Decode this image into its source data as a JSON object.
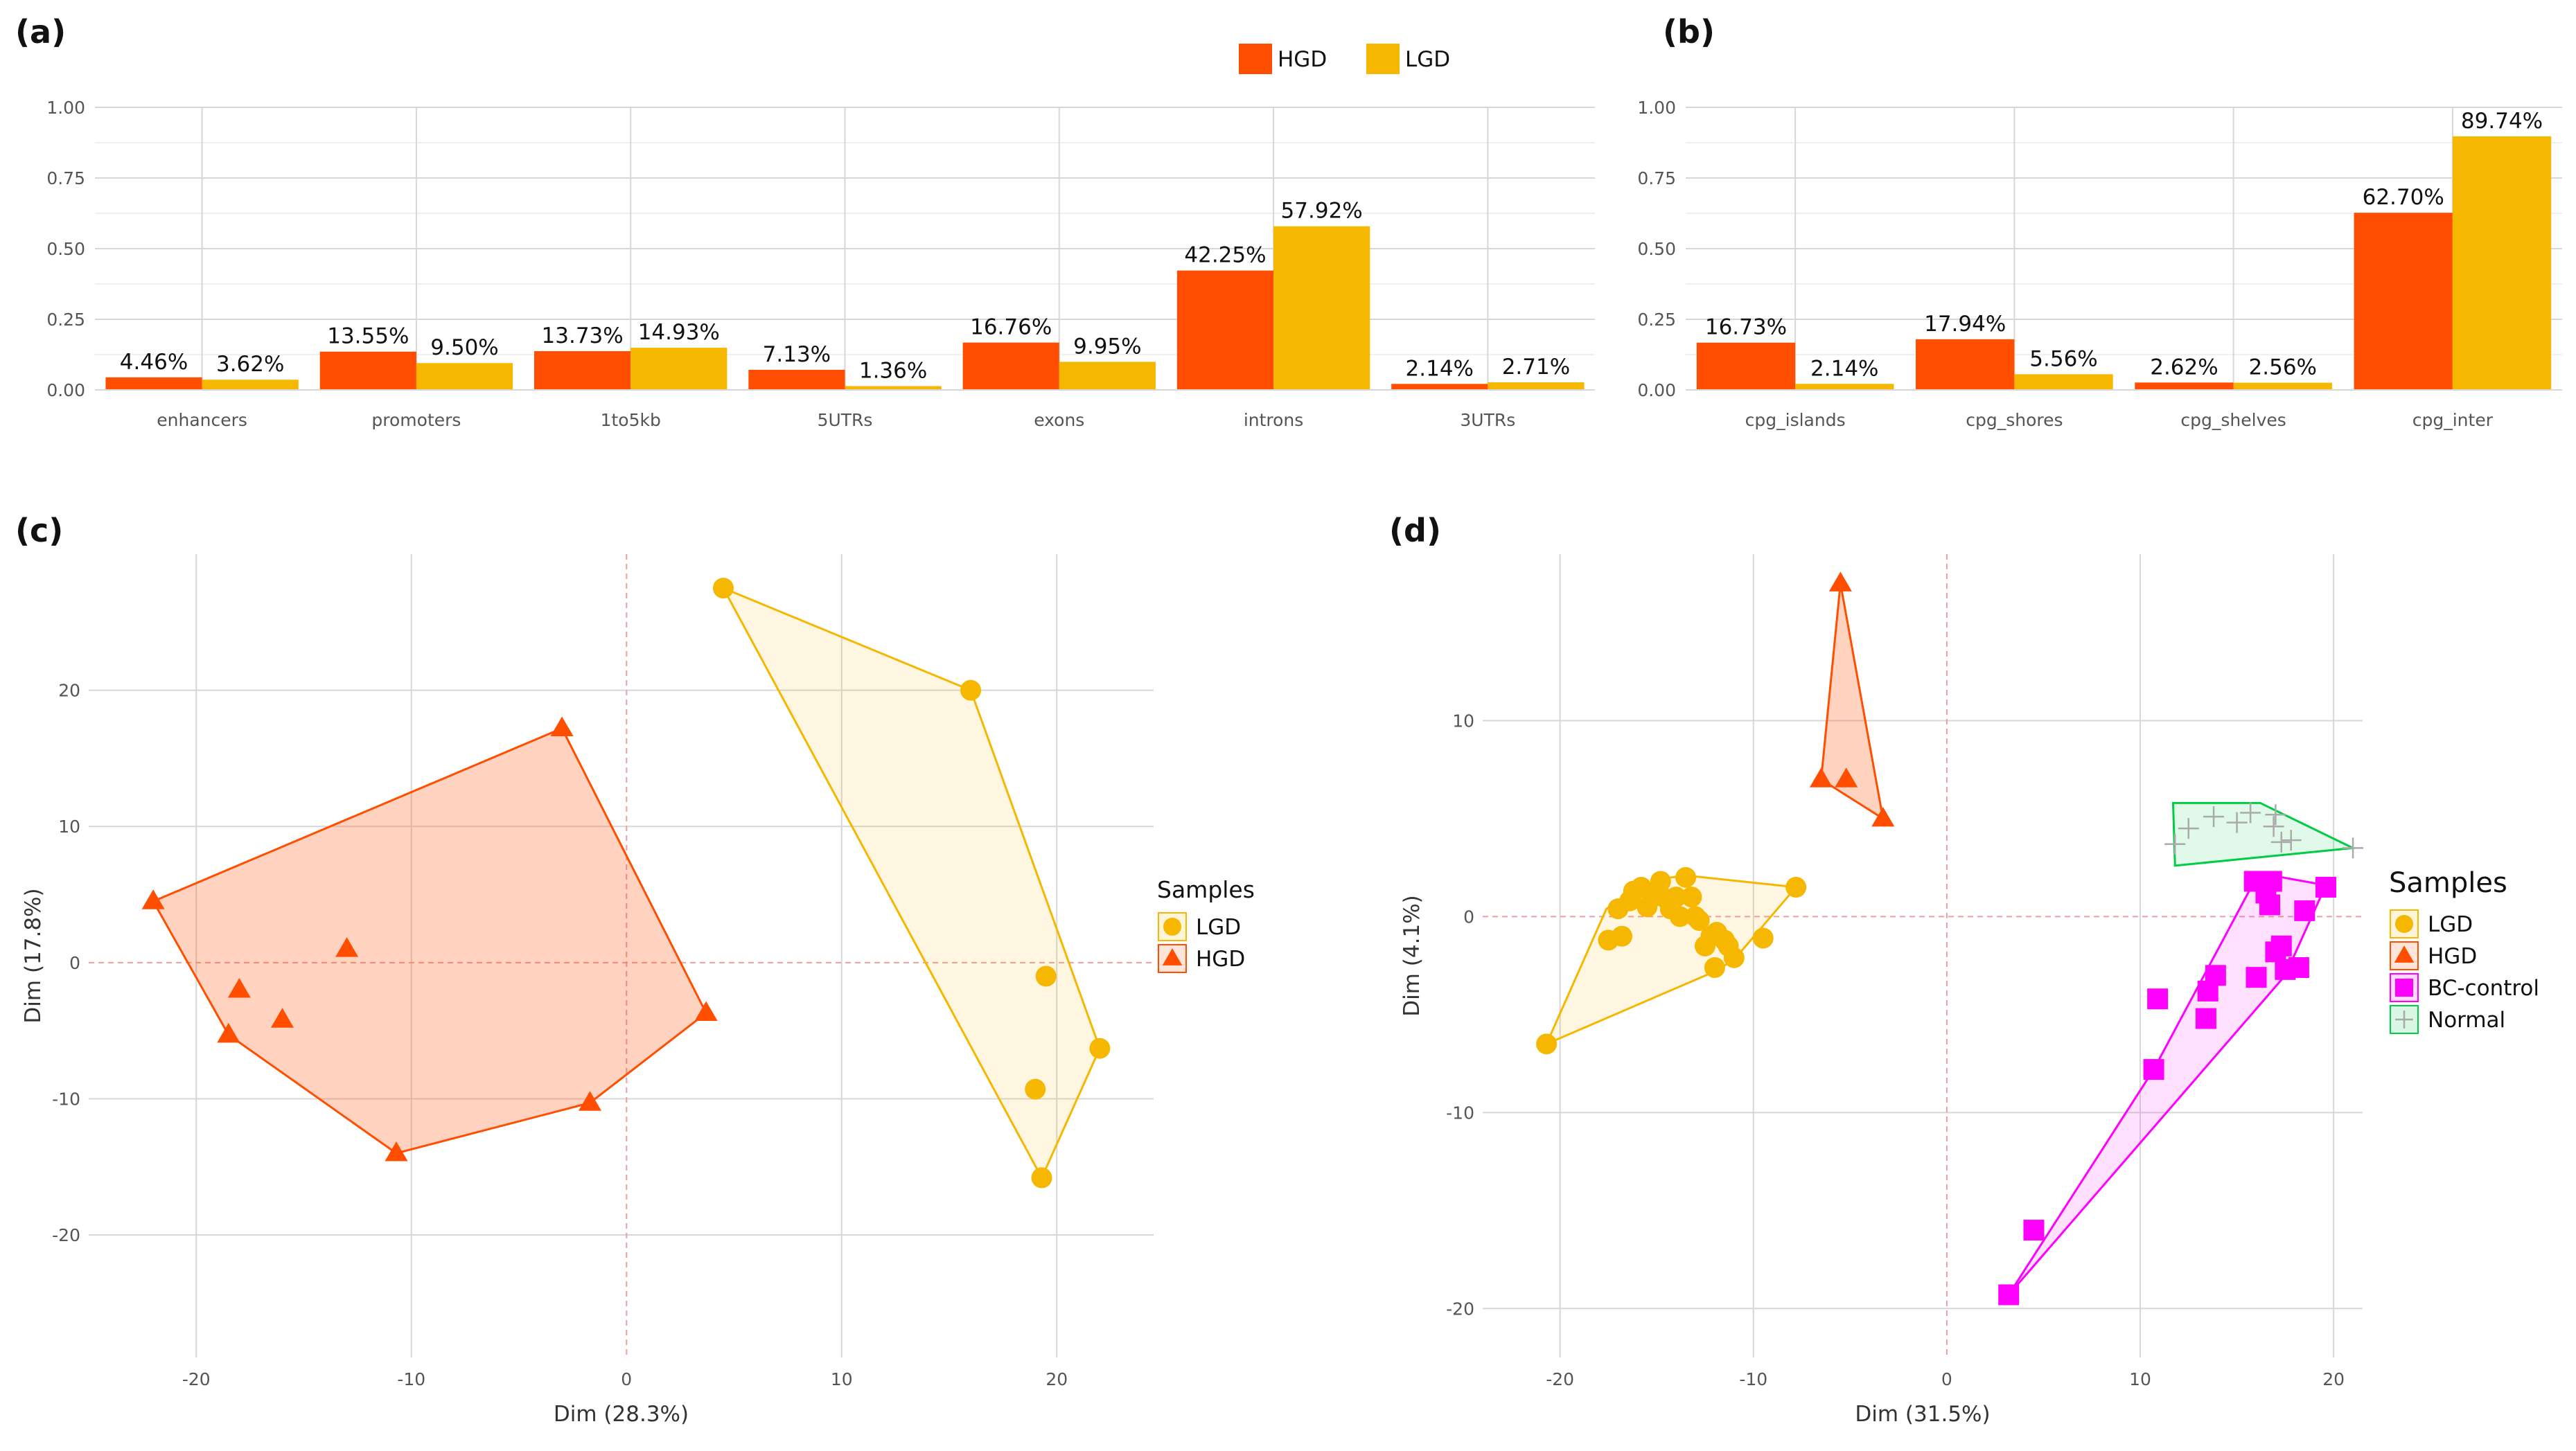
{
  "colors": {
    "HGD": "#ff4e00",
    "LGD": "#f5b700",
    "BC-control": "#ff00ff",
    "Normal": "#00cc44"
  },
  "panels": {
    "a": "(a)",
    "b": "(b)",
    "c": "(c)",
    "d": "(d)"
  },
  "chart_data": [
    {
      "id": "a",
      "type": "bar",
      "title": "",
      "categories": [
        "enhancers",
        "promoters",
        "1to5kb",
        "5UTRs",
        "exons",
        "introns",
        "3UTRs"
      ],
      "series": [
        {
          "name": "HGD",
          "values": [
            0.0446,
            0.1355,
            0.1373,
            0.0713,
            0.1676,
            0.4225,
            0.0214
          ],
          "labels": [
            "4.46%",
            "13.55%",
            "13.73%",
            "7.13%",
            "16.76%",
            "42.25%",
            "2.14%"
          ]
        },
        {
          "name": "LGD",
          "values": [
            0.0362,
            0.095,
            0.1493,
            0.0136,
            0.0995,
            0.5792,
            0.0271
          ],
          "labels": [
            "3.62%",
            "9.50%",
            "14.93%",
            "1.36%",
            "9.95%",
            "57.92%",
            "2.71%"
          ]
        }
      ],
      "ylim": [
        0,
        1
      ],
      "yticks": [
        0,
        0.25,
        0.5,
        0.75,
        1.0
      ],
      "ytick_labels": [
        "0.00",
        "0.25",
        "0.50",
        "0.75",
        "1.00"
      ],
      "legend": "top",
      "legend_entries": [
        "HGD",
        "LGD"
      ],
      "xlabel": "",
      "ylabel": ""
    },
    {
      "id": "b",
      "type": "bar",
      "title": "",
      "categories": [
        "cpg_islands",
        "cpg_shores",
        "cpg_shelves",
        "cpg_inter"
      ],
      "series": [
        {
          "name": "HGD",
          "values": [
            0.1673,
            0.1794,
            0.0262,
            0.627
          ],
          "labels": [
            "16.73%",
            "17.94%",
            "2.62%",
            "62.70%"
          ]
        },
        {
          "name": "LGD",
          "values": [
            0.0214,
            0.0556,
            0.0256,
            0.8974
          ],
          "labels": [
            "2.14%",
            "5.56%",
            "2.56%",
            "89.74%"
          ]
        }
      ],
      "ylim": [
        0,
        1
      ],
      "yticks": [
        0,
        0.25,
        0.5,
        0.75,
        1.0
      ],
      "ytick_labels": [
        "0.00",
        "0.25",
        "0.50",
        "0.75",
        "1.00"
      ],
      "xlabel": "",
      "ylabel": ""
    },
    {
      "id": "c",
      "type": "scatter",
      "title": "",
      "xlabel": "Dim (28.3%)",
      "ylabel": "Dim (17.8%)",
      "xlim": [
        -25,
        24.5
      ],
      "ylim": [
        -29,
        30
      ],
      "xticks": [
        -20,
        -10,
        0,
        10,
        20
      ],
      "xtick_labels": [
        "-20",
        "-10",
        "0",
        "10",
        "20"
      ],
      "yticks": [
        -20,
        -10,
        0,
        10,
        20
      ],
      "ytick_labels": [
        "-20",
        "-10",
        "0",
        "10",
        "20"
      ],
      "legend_title": "Samples",
      "legend_entries": [
        "LGD",
        "HGD"
      ],
      "series": [
        {
          "name": "LGD",
          "shape": "circle",
          "points": [
            [
              4.5,
              27.5
            ],
            [
              16,
              20
            ],
            [
              19.5,
              -1
            ],
            [
              22,
              -6.3
            ],
            [
              19,
              -9.3
            ],
            [
              19.3,
              -15.8
            ]
          ],
          "hull": [
            [
              4.5,
              27.5
            ],
            [
              16,
              20
            ],
            [
              22,
              -6.3
            ],
            [
              19.3,
              -15.8
            ]
          ]
        },
        {
          "name": "HGD",
          "shape": "triangle",
          "points": [
            [
              -3,
              17.2
            ],
            [
              -22,
              4.5
            ],
            [
              -13,
              1
            ],
            [
              -18,
              -2
            ],
            [
              -16,
              -4.2
            ],
            [
              -18.5,
              -5.3
            ],
            [
              3.7,
              -3.7
            ],
            [
              -1.7,
              -10.3
            ],
            [
              -10.7,
              -14
            ]
          ],
          "hull": [
            [
              -3,
              17.2
            ],
            [
              -22,
              4.5
            ],
            [
              -18.5,
              -5.3
            ],
            [
              -10.7,
              -14
            ],
            [
              -1.7,
              -10.3
            ],
            [
              3.7,
              -3.7
            ]
          ]
        }
      ]
    },
    {
      "id": "d",
      "type": "scatter",
      "title": "",
      "xlabel": "Dim (31.5%)",
      "ylabel": "Dim (4.1%)",
      "xlim": [
        -24,
        21.5
      ],
      "ylim": [
        -22.5,
        18.5
      ],
      "xticks": [
        -20,
        -10,
        0,
        10,
        20
      ],
      "xtick_labels": [
        "-20",
        "-10",
        "0",
        "10",
        "20"
      ],
      "yticks": [
        -20,
        -10,
        0,
        10
      ],
      "ytick_labels": [
        "-20",
        "-10",
        "0",
        "10"
      ],
      "legend_title": "Samples",
      "legend_entries": [
        "LGD",
        "HGD",
        "BC-control",
        "Normal"
      ],
      "series": [
        {
          "name": "LGD",
          "shape": "circle",
          "points": [
            [
              -20.7,
              -6.5
            ],
            [
              -17.5,
              -1.2
            ],
            [
              -16.8,
              -1
            ],
            [
              -17,
              0.4
            ],
            [
              -16.4,
              0.8
            ],
            [
              -16.2,
              1.3
            ],
            [
              -15.8,
              1.5
            ],
            [
              -15.5,
              0.5
            ],
            [
              -15.2,
              1
            ],
            [
              -14.8,
              1.8
            ],
            [
              -14.5,
              0.9
            ],
            [
              -14.3,
              0.4
            ],
            [
              -14,
              1
            ],
            [
              -13.8,
              0
            ],
            [
              -13.5,
              2
            ],
            [
              -13.2,
              1
            ],
            [
              -13,
              0
            ],
            [
              -12.8,
              -0.2
            ],
            [
              -12.5,
              -1.5
            ],
            [
              -12.2,
              -1
            ],
            [
              -12,
              -2.6
            ],
            [
              -11.9,
              -0.8
            ],
            [
              -11.5,
              -1.2
            ],
            [
              -11.3,
              -1.5
            ],
            [
              -11,
              -2.1
            ],
            [
              -9.5,
              -1.1
            ],
            [
              -7.8,
              1.5
            ]
          ],
          "hull": [
            [
              -20.7,
              -6.5
            ],
            [
              -17.6,
              0.4
            ],
            [
              -15,
              1.9
            ],
            [
              -13.5,
              2.1
            ],
            [
              -7.8,
              1.5
            ],
            [
              -11,
              -2.2
            ],
            [
              -12,
              -2.8
            ]
          ]
        },
        {
          "name": "HGD",
          "shape": "triangle",
          "points": [
            [
              -5.5,
              17
            ],
            [
              -6.5,
              7
            ],
            [
              -5.2,
              7
            ],
            [
              -3.3,
              5
            ]
          ],
          "hull": [
            [
              -5.5,
              17
            ],
            [
              -6.5,
              7
            ],
            [
              -3.3,
              5
            ]
          ]
        },
        {
          "name": "BC-control",
          "shape": "square",
          "points": [
            [
              3.2,
              -19.3
            ],
            [
              4.5,
              -16
            ],
            [
              10.7,
              -7.8
            ],
            [
              10.9,
              -4.2
            ],
            [
              13.4,
              -5.2
            ],
            [
              13.5,
              -3.8
            ],
            [
              13.9,
              -3
            ],
            [
              15.9,
              1.8
            ],
            [
              16,
              -3.1
            ],
            [
              16.5,
              1.2
            ],
            [
              16.8,
              1.8
            ],
            [
              16.7,
              0.6
            ],
            [
              17,
              -1.8
            ],
            [
              17.3,
              -1.5
            ],
            [
              17.5,
              -2.7
            ],
            [
              18.2,
              -2.6
            ],
            [
              18.5,
              0.3
            ],
            [
              19.6,
              1.5
            ]
          ],
          "hull": [
            [
              3.2,
              -19.3
            ],
            [
              10.7,
              -7.8
            ],
            [
              15.9,
              1.8
            ],
            [
              16.8,
              2.1
            ],
            [
              19.6,
              1.6
            ],
            [
              17.5,
              -3
            ]
          ]
        },
        {
          "name": "Normal",
          "shape": "plus",
          "points": [
            [
              11.8,
              3.7
            ],
            [
              12.5,
              4.5
            ],
            [
              13.8,
              5.1
            ],
            [
              15,
              4.8
            ],
            [
              15.7,
              5.3
            ],
            [
              16.9,
              4.6
            ],
            [
              17,
              5.2
            ],
            [
              17.3,
              3.8
            ],
            [
              17.8,
              3.9
            ],
            [
              21,
              3.5
            ]
          ],
          "hull": [
            [
              11.7,
              5.8
            ],
            [
              16.2,
              5.8
            ],
            [
              21,
              3.5
            ],
            [
              11.8,
              2.6
            ]
          ]
        }
      ]
    }
  ]
}
